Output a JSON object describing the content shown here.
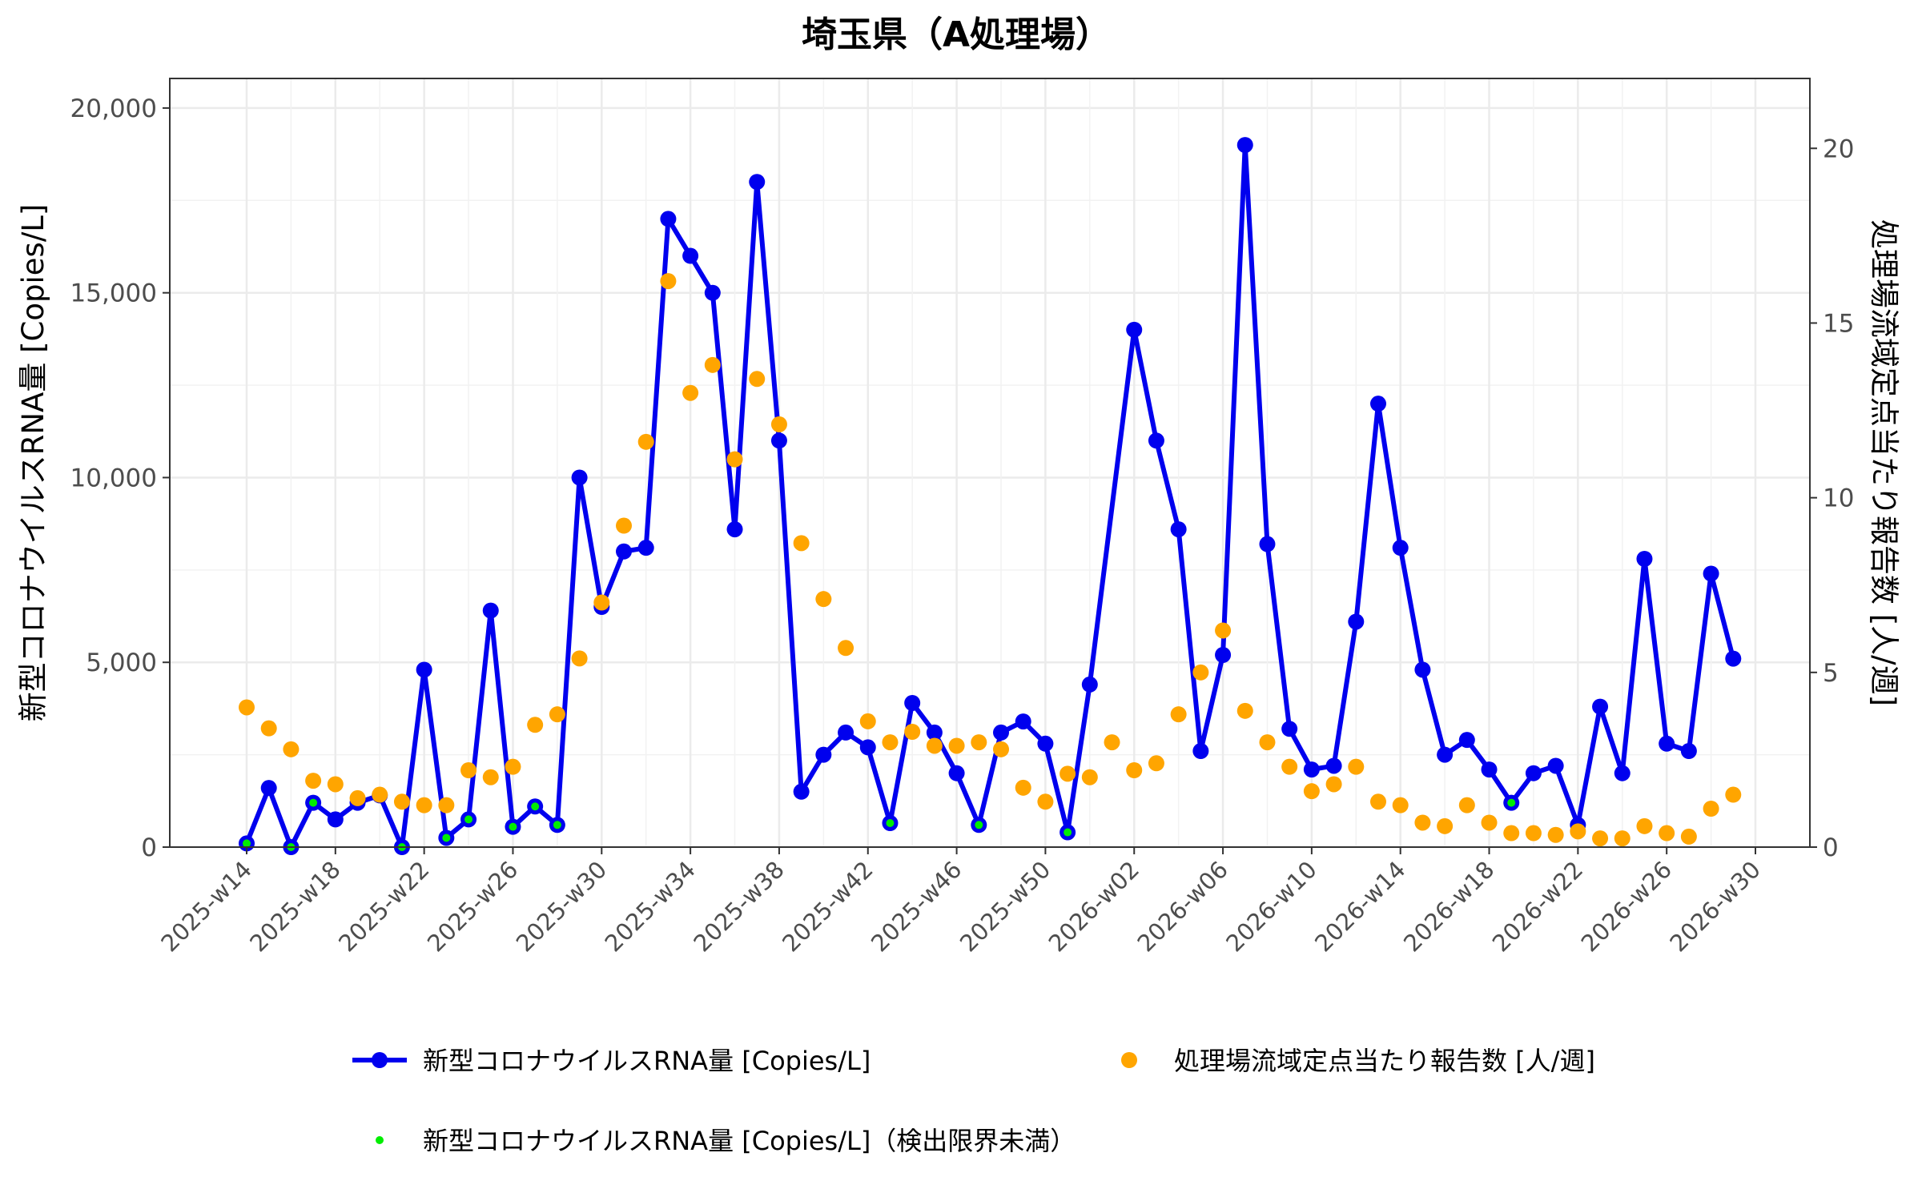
{
  "chart_data": {
    "type": "line",
    "title": "埼玉県（A処理場）",
    "ylabel_left": "新型コロナウイルスRNA量 [Copies/L]",
    "ylabel_right": "処理場流域定点当たり報告数 [人/週]",
    "ylim_left": [
      0,
      20800
    ],
    "ylim_right": [
      0,
      22
    ],
    "yticks_left": [
      0,
      5000,
      10000,
      15000,
      20000
    ],
    "yticks_left_labels": [
      "0",
      "5,000",
      "10,000",
      "15,000",
      "20,000"
    ],
    "yticks_right": [
      0,
      5,
      10,
      15,
      20
    ],
    "yticks_right_labels": [
      "0",
      "5",
      "10",
      "15",
      "20"
    ],
    "x_week_labels": [
      "2025-w14",
      "2025-w15",
      "2025-w16",
      "2025-w17",
      "2025-w18",
      "2025-w19",
      "2025-w20",
      "2025-w21",
      "2025-w22",
      "2025-w23",
      "2025-w24",
      "2025-w25",
      "2025-w26",
      "2025-w27",
      "2025-w28",
      "2025-w29",
      "2025-w30",
      "2025-w31",
      "2025-w32",
      "2025-w33",
      "2025-w34",
      "2025-w35",
      "2025-w36",
      "2025-w37",
      "2025-w38",
      "2025-w39",
      "2025-w40",
      "2025-w41",
      "2025-w42",
      "2025-w43",
      "2025-w44",
      "2025-w45",
      "2025-w46",
      "2025-w47",
      "2025-w48",
      "2025-w49",
      "2025-w50",
      "2025-w51",
      "2025-w52",
      "2026-w01",
      "2026-w02",
      "2026-w03",
      "2026-w04",
      "2026-w05",
      "2026-w06",
      "2026-w07",
      "2026-w08",
      "2026-w09",
      "2026-w10",
      "2026-w11",
      "2026-w12",
      "2026-w13",
      "2026-w14",
      "2026-w15",
      "2026-w16",
      "2026-w17",
      "2026-w18",
      "2026-w19",
      "2026-w20",
      "2026-w21",
      "2026-w22",
      "2026-w23",
      "2026-w24",
      "2026-w25",
      "2026-w26",
      "2026-w27",
      "2026-w28",
      "2026-w29",
      "2026-w30"
    ],
    "x_tick_labels": [
      "2025-w14",
      "2025-w18",
      "2025-w22",
      "2025-w26",
      "2025-w30",
      "2025-w34",
      "2025-w38",
      "2025-w42",
      "2025-w46",
      "2025-w50",
      "2026-w02",
      "2026-w06",
      "2026-w10",
      "2026-w14",
      "2026-w18",
      "2026-w22",
      "2026-w26",
      "2026-w30"
    ],
    "legend_position": "bottom",
    "grid": true,
    "series": [
      {
        "name": "新型コロナウイルスRNA量 [Copies/L]",
        "kind": "line+points",
        "axis": "left",
        "color": "#0000ee",
        "points": [
          [
            "2025-w14",
            100
          ],
          [
            "2025-w15",
            1600
          ],
          [
            "2025-w16",
            0
          ],
          [
            "2025-w17",
            1200
          ],
          [
            "2025-w18",
            750
          ],
          [
            "2025-w19",
            1200
          ],
          [
            "2025-w20",
            1400
          ],
          [
            "2025-w21",
            0
          ],
          [
            "2025-w22",
            4800
          ],
          [
            "2025-w23",
            250
          ],
          [
            "2025-w24",
            750
          ],
          [
            "2025-w25",
            6400
          ],
          [
            "2025-w26",
            550
          ],
          [
            "2025-w27",
            1100
          ],
          [
            "2025-w28",
            600
          ],
          [
            "2025-w29",
            10000
          ],
          [
            "2025-w30",
            6500
          ],
          [
            "2025-w31",
            8000
          ],
          [
            "2025-w32",
            8100
          ],
          [
            "2025-w33",
            17000
          ],
          [
            "2025-w34",
            16000
          ],
          [
            "2025-w35",
            15000
          ],
          [
            "2025-w36",
            8600
          ],
          [
            "2025-w37",
            18000
          ],
          [
            "2025-w38",
            11000
          ],
          [
            "2025-w39",
            1500
          ],
          [
            "2025-w40",
            2500
          ],
          [
            "2025-w41",
            3100
          ],
          [
            "2025-w42",
            2700
          ],
          [
            "2025-w43",
            650
          ],
          [
            "2025-w44",
            3900
          ],
          [
            "2025-w45",
            3100
          ],
          [
            "2025-w46",
            2000
          ],
          [
            "2025-w47",
            600
          ],
          [
            "2025-w48",
            3100
          ],
          [
            "2025-w49",
            3400
          ],
          [
            "2025-w50",
            2800
          ],
          [
            "2025-w51",
            400
          ],
          [
            "2025-w52",
            4400
          ],
          [
            "2026-w02",
            14000
          ],
          [
            "2026-w03",
            11000
          ],
          [
            "2026-w04",
            8600
          ],
          [
            "2026-w05",
            2600
          ],
          [
            "2026-w06",
            5200
          ],
          [
            "2026-w07",
            19000
          ],
          [
            "2026-w08",
            8200
          ],
          [
            "2026-w09",
            3200
          ],
          [
            "2026-w10",
            2100
          ],
          [
            "2026-w11",
            2200
          ],
          [
            "2026-w12",
            6100
          ],
          [
            "2026-w13",
            12000
          ],
          [
            "2026-w14",
            8100
          ],
          [
            "2026-w15",
            4800
          ],
          [
            "2026-w16",
            2500
          ],
          [
            "2026-w17",
            2900
          ],
          [
            "2026-w18",
            2100
          ],
          [
            "2026-w19",
            1200
          ],
          [
            "2026-w20",
            2000
          ],
          [
            "2026-w21",
            2200
          ],
          [
            "2026-w22",
            600
          ],
          [
            "2026-w23",
            3800
          ],
          [
            "2026-w24",
            2000
          ],
          [
            "2026-w25",
            7800
          ],
          [
            "2026-w26",
            2800
          ],
          [
            "2026-w27",
            2600
          ],
          [
            "2026-w28",
            7400
          ],
          [
            "2026-w29",
            5100
          ]
        ]
      },
      {
        "name": "処理場流域定点当たり報告数 [人/週]",
        "kind": "points",
        "axis": "right",
        "color": "#ffa500",
        "points": [
          [
            "2025-w14",
            4.0
          ],
          [
            "2025-w15",
            3.4
          ],
          [
            "2025-w16",
            2.8
          ],
          [
            "2025-w17",
            1.9
          ],
          [
            "2025-w18",
            1.8
          ],
          [
            "2025-w19",
            1.4
          ],
          [
            "2025-w20",
            1.5
          ],
          [
            "2025-w21",
            1.3
          ],
          [
            "2025-w22",
            1.2
          ],
          [
            "2025-w23",
            1.2
          ],
          [
            "2025-w24",
            2.2
          ],
          [
            "2025-w25",
            2.0
          ],
          [
            "2025-w26",
            2.3
          ],
          [
            "2025-w27",
            3.5
          ],
          [
            "2025-w28",
            3.8
          ],
          [
            "2025-w29",
            5.4
          ],
          [
            "2025-w30",
            7.0
          ],
          [
            "2025-w31",
            9.2
          ],
          [
            "2025-w32",
            11.6
          ],
          [
            "2025-w33",
            16.2
          ],
          [
            "2025-w34",
            13.0
          ],
          [
            "2025-w35",
            13.8
          ],
          [
            "2025-w36",
            11.1
          ],
          [
            "2025-w37",
            13.4
          ],
          [
            "2025-w38",
            12.1
          ],
          [
            "2025-w39",
            8.7
          ],
          [
            "2025-w40",
            7.1
          ],
          [
            "2025-w41",
            5.7
          ],
          [
            "2025-w42",
            3.6
          ],
          [
            "2025-w43",
            3.0
          ],
          [
            "2025-w44",
            3.3
          ],
          [
            "2025-w45",
            2.9
          ],
          [
            "2025-w46",
            2.9
          ],
          [
            "2025-w47",
            3.0
          ],
          [
            "2025-w48",
            2.8
          ],
          [
            "2025-w49",
            1.7
          ],
          [
            "2025-w50",
            1.3
          ],
          [
            "2025-w51",
            2.1
          ],
          [
            "2025-w52",
            2.0
          ],
          [
            "2026-w01",
            3.0
          ],
          [
            "2026-w02",
            2.2
          ],
          [
            "2026-w03",
            2.4
          ],
          [
            "2026-w04",
            3.8
          ],
          [
            "2026-w05",
            5.0
          ],
          [
            "2026-w06",
            6.2
          ],
          [
            "2026-w07",
            3.9
          ],
          [
            "2026-w08",
            3.0
          ],
          [
            "2026-w09",
            2.3
          ],
          [
            "2026-w10",
            1.6
          ],
          [
            "2026-w11",
            1.8
          ],
          [
            "2026-w12",
            2.3
          ],
          [
            "2026-w13",
            1.3
          ],
          [
            "2026-w14",
            1.2
          ],
          [
            "2026-w15",
            0.7
          ],
          [
            "2026-w16",
            0.6
          ],
          [
            "2026-w17",
            1.2
          ],
          [
            "2026-w18",
            0.7
          ],
          [
            "2026-w19",
            0.4
          ],
          [
            "2026-w20",
            0.4
          ],
          [
            "2026-w21",
            0.35
          ],
          [
            "2026-w22",
            0.45
          ],
          [
            "2026-w23",
            0.25
          ],
          [
            "2026-w24",
            0.25
          ],
          [
            "2026-w25",
            0.6
          ],
          [
            "2026-w26",
            0.4
          ],
          [
            "2026-w27",
            0.3
          ],
          [
            "2026-w28",
            1.1
          ],
          [
            "2026-w29",
            1.5
          ]
        ]
      },
      {
        "name": "新型コロナウイルスRNA量 [Copies/L]（検出限界未満）",
        "kind": "points",
        "axis": "left",
        "color": "#00ee00",
        "points": [
          [
            "2025-w14",
            100
          ],
          [
            "2025-w16",
            0
          ],
          [
            "2025-w17",
            1200
          ],
          [
            "2025-w21",
            0
          ],
          [
            "2025-w23",
            250
          ],
          [
            "2025-w24",
            750
          ],
          [
            "2025-w26",
            550
          ],
          [
            "2025-w27",
            1100
          ],
          [
            "2025-w28",
            600
          ],
          [
            "2025-w43",
            650
          ],
          [
            "2025-w47",
            600
          ],
          [
            "2025-w51",
            400
          ],
          [
            "2026-w19",
            1200
          ]
        ]
      }
    ]
  }
}
